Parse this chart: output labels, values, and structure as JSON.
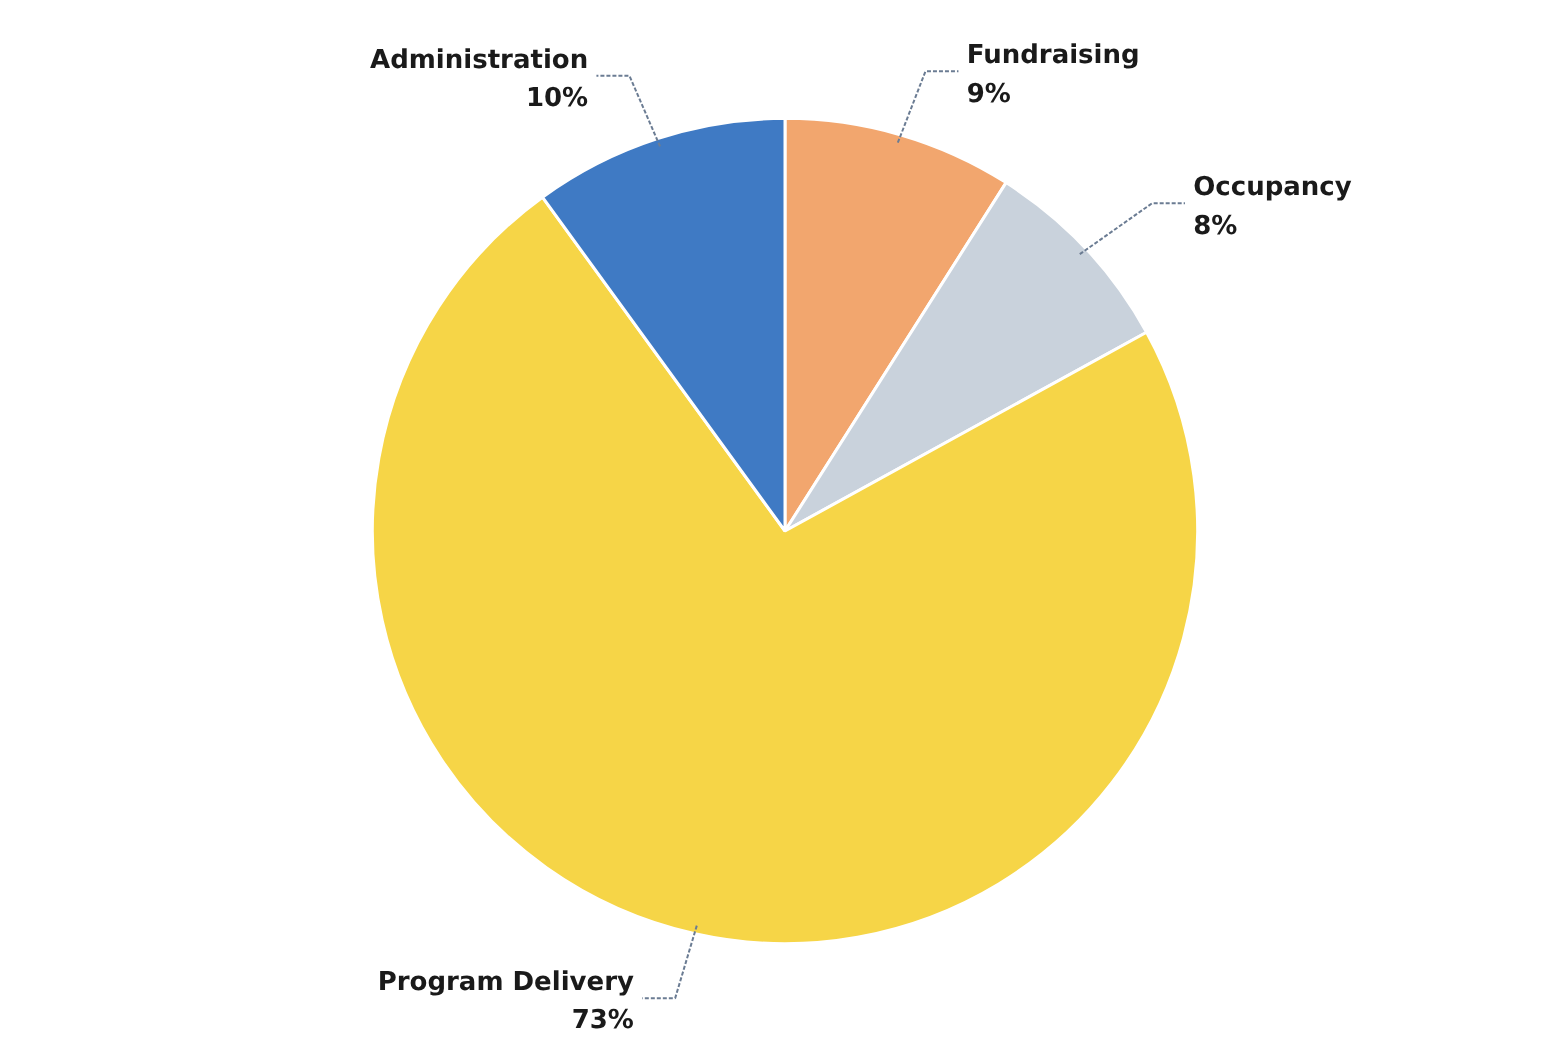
{
  "chart_data": {
    "type": "pie",
    "categories": [
      "Fundraising",
      "Occupancy",
      "Program Delivery",
      "Administration"
    ],
    "values": [
      9,
      8,
      73,
      10
    ],
    "value_labels": [
      "9%",
      "8%",
      "73%",
      "10%"
    ],
    "colors": [
      "#f2a66e",
      "#c9d2dc",
      "#f6d547",
      "#3f7ac4"
    ]
  }
}
